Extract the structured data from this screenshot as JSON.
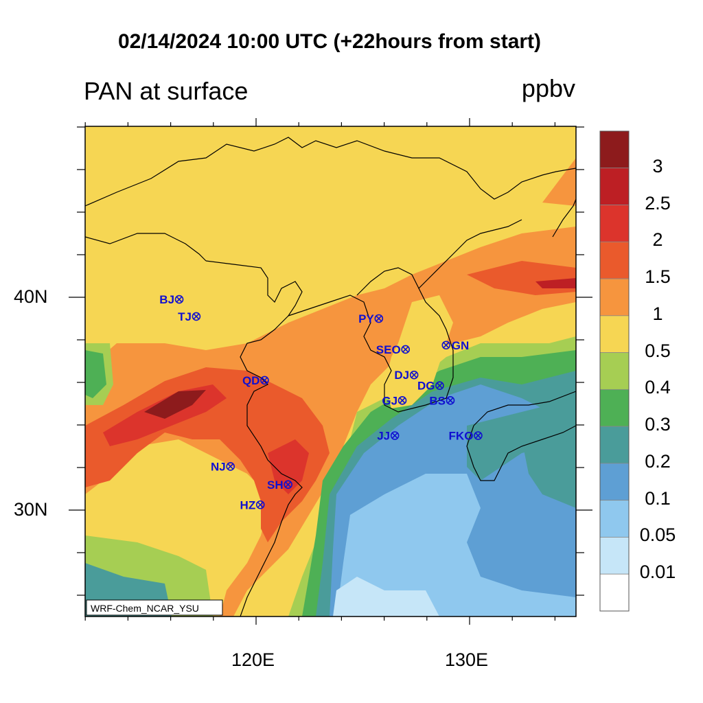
{
  "header": {
    "title": "02/14/2024 10:00 UTC (+22hours from start)",
    "left_title": "PAN at surface",
    "units": "ppbv"
  },
  "map": {
    "lon_range": [
      112,
      135
    ],
    "lat_range": [
      25,
      48
    ],
    "lon_ticks": [
      {
        "value": 120,
        "label": "120E"
      },
      {
        "value": 130,
        "label": "130E"
      }
    ],
    "lat_ticks": [
      {
        "value": 40,
        "label": "40N"
      },
      {
        "value": 30,
        "label": "30N"
      }
    ],
    "model_label": "WRF-Chem_NCAR_YSU",
    "stations": [
      {
        "code": "BJ",
        "lon": 116.4,
        "lat": 39.9
      },
      {
        "code": "TJ",
        "lon": 117.2,
        "lat": 39.1
      },
      {
        "code": "PY",
        "lon": 125.75,
        "lat": 39.0
      },
      {
        "code": "SEO",
        "lon": 127.0,
        "lat": 37.55
      },
      {
        "code": "GN",
        "lon": 128.9,
        "lat": 37.75
      },
      {
        "code": "QD",
        "lon": 120.4,
        "lat": 36.1
      },
      {
        "code": "DJ",
        "lon": 127.4,
        "lat": 36.35
      },
      {
        "code": "DG",
        "lon": 128.6,
        "lat": 35.85
      },
      {
        "code": "GJ",
        "lon": 126.85,
        "lat": 35.15
      },
      {
        "code": "BS",
        "lon": 129.1,
        "lat": 35.15
      },
      {
        "code": "JJ",
        "lon": 126.5,
        "lat": 33.5
      },
      {
        "code": "FKO",
        "lon": 130.4,
        "lat": 33.5
      },
      {
        "code": "NJ",
        "lon": 118.8,
        "lat": 32.05
      },
      {
        "code": "SH",
        "lon": 121.5,
        "lat": 31.2
      },
      {
        "code": "HZ",
        "lon": 120.2,
        "lat": 30.25
      }
    ]
  },
  "colorbar": {
    "labels": [
      "3",
      "2.5",
      "2",
      "1.5",
      "1",
      "0.5",
      "0.4",
      "0.3",
      "0.2",
      "0.1",
      "0.05",
      "0.01"
    ],
    "colors": [
      "#8d1b1c",
      "#bd1f24",
      "#dc342c",
      "#ea5a2c",
      "#f6953e",
      "#f6d653",
      "#a6ce53",
      "#4eb055",
      "#4a9c9a",
      "#5e9fd4",
      "#8fc8ee",
      "#c6e6f8",
      "#ffffff"
    ],
    "colors_top_to_bottom_note": ""
  }
}
